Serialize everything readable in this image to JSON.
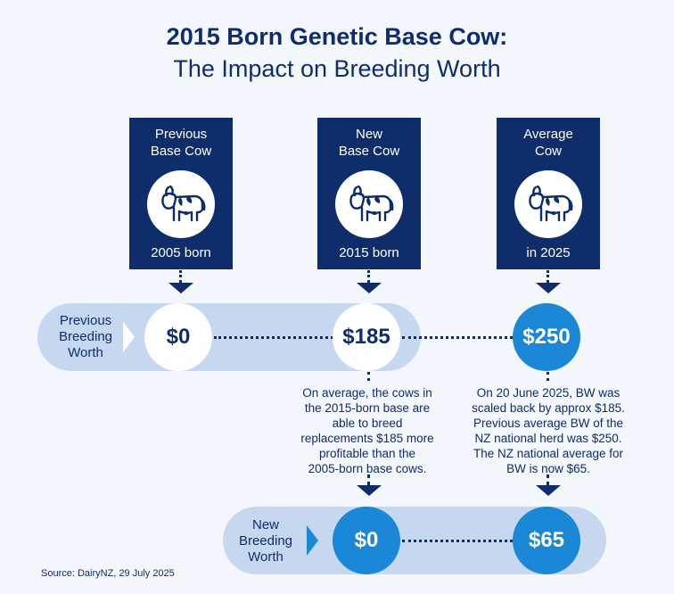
{
  "title": {
    "line1": "2015 Born Genetic Base Cow:",
    "line2": "The Impact on Breeding Worth"
  },
  "cows": [
    {
      "line1": "Previous",
      "line2": "Base Cow",
      "footer": "2005 born",
      "icon": "cow-icon"
    },
    {
      "line1": "New",
      "line2": "Base Cow",
      "footer": "2015 born",
      "icon": "cow-icon"
    },
    {
      "line1": "Average",
      "line2": "Cow",
      "footer": "in 2025",
      "icon": "cow-icon"
    }
  ],
  "previous_bw": {
    "label_lines": [
      "Previous",
      "Breeding",
      "Worth"
    ],
    "values": [
      "$0",
      "$185",
      "$250"
    ]
  },
  "notes": {
    "left": [
      "On average, the cows in",
      "the 2015-born base are",
      "able to breed",
      "replacements $185 more",
      "profitable than the",
      "2005-born base cows."
    ],
    "right": [
      "On 20 June 2025, BW was",
      "scaled back by approx $185.",
      "Previous average BW of the",
      "NZ national herd was $250.",
      "The NZ national average for",
      "BW is now $65."
    ]
  },
  "new_bw": {
    "label_lines": [
      "New",
      "Breeding",
      "Worth"
    ],
    "values": [
      "$0",
      "$65"
    ]
  },
  "source": "Source: DairyNZ, 29 July 2025",
  "colors": {
    "navy": "#0f2d6b",
    "accent_blue": "#1a88d6",
    "band": "#c6d8ef",
    "background": "#f3f6fb"
  }
}
